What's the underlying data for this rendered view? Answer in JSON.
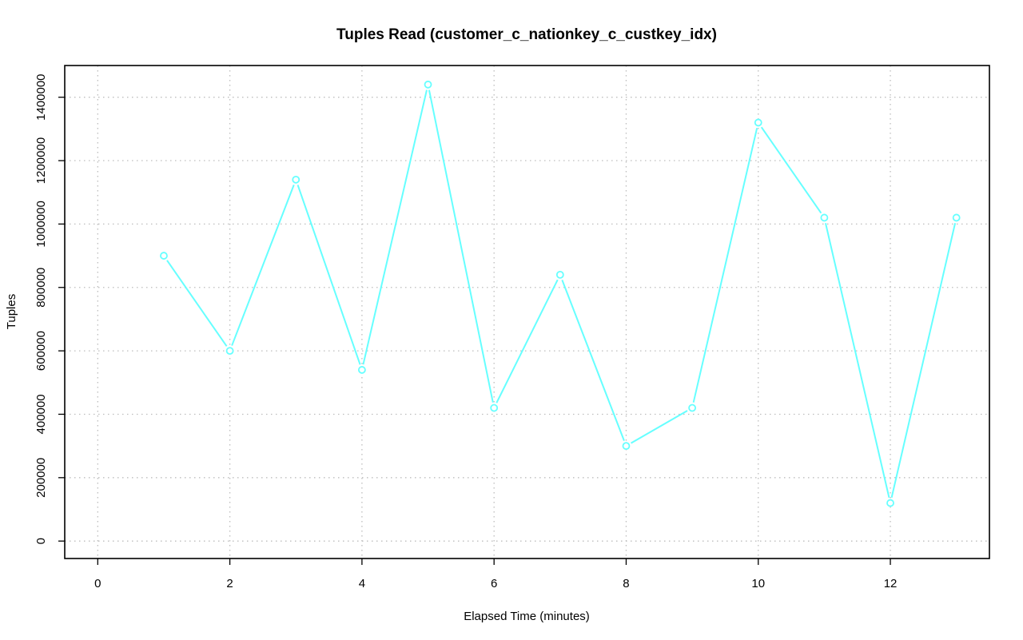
{
  "chart_data": {
    "type": "line",
    "title": "Tuples Read (customer_c_nationkey_c_custkey_idx)",
    "xlabel": "Elapsed Time (minutes)",
    "ylabel": "Tuples",
    "xlim": [
      -0.5,
      13.5
    ],
    "ylim": [
      -55000,
      1500000
    ],
    "xticks": [
      0,
      2,
      4,
      6,
      8,
      10,
      12
    ],
    "yticks": [
      0,
      200000,
      400000,
      600000,
      800000,
      1000000,
      1200000,
      1400000
    ],
    "grid": true,
    "color": "#66ffff",
    "series": [
      {
        "x": [
          1,
          2,
          3,
          4,
          5,
          6,
          7,
          8,
          9,
          10,
          11,
          12,
          13
        ],
        "values": [
          900000,
          600000,
          1140000,
          540000,
          1440000,
          420000,
          840000,
          300000,
          420000,
          1320000,
          1020000,
          120000,
          1020000
        ]
      }
    ]
  }
}
